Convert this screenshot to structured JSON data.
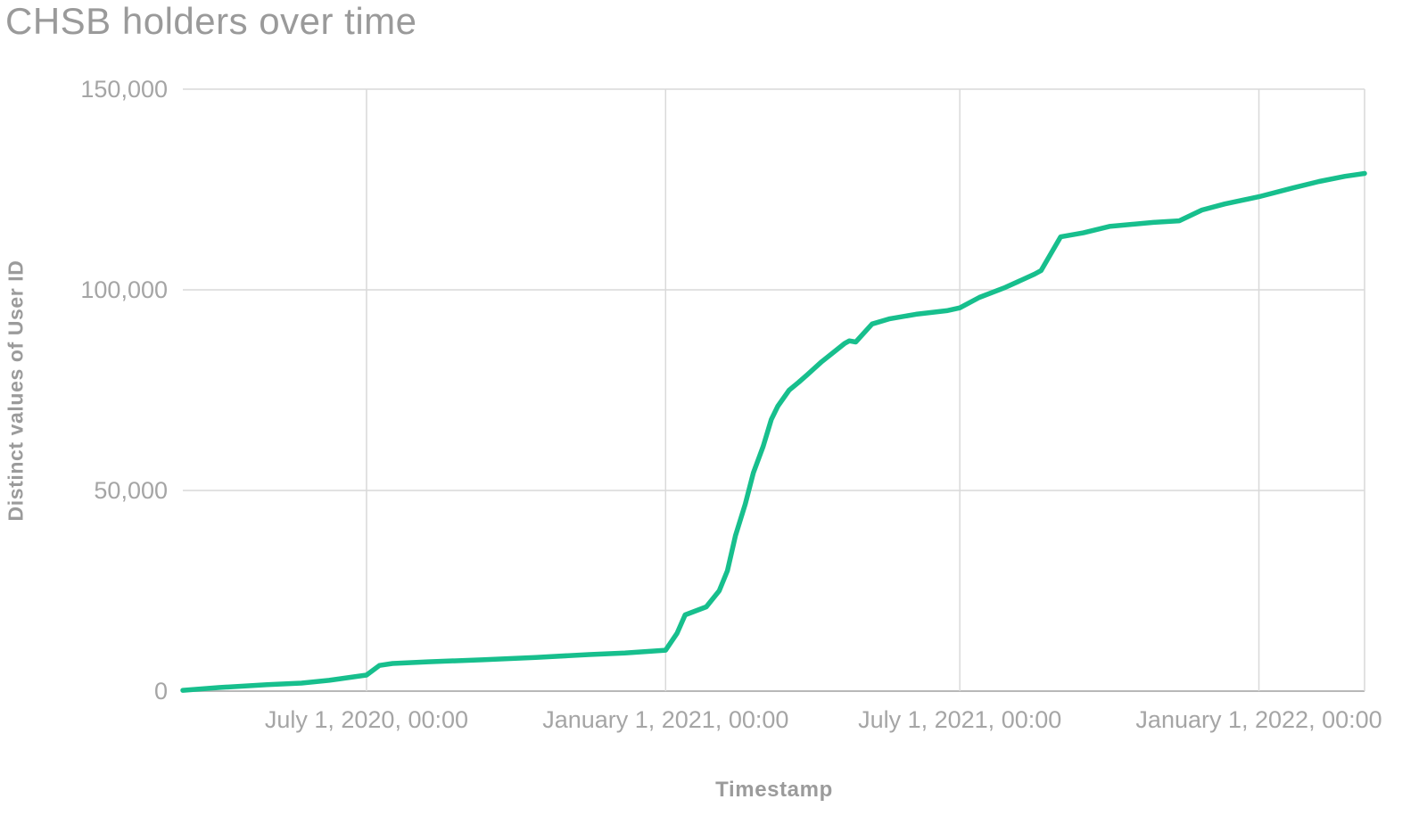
{
  "chart_data": {
    "type": "line",
    "title": "CHSB holders over time",
    "xlabel": "Timestamp",
    "ylabel": "Distinct values of User ID",
    "ylim": [
      0,
      150000
    ],
    "grid": true,
    "legend": "none",
    "colors": {
      "line": "#17bf8d",
      "grid": "#d9d9d9",
      "axis": "#b8b8b8",
      "text": "#9b9b9b",
      "tick_text": "#a5a5a5"
    },
    "x_domain": [
      "2020-03-10",
      "2022-03-07"
    ],
    "y_ticks": [
      {
        "value": 0,
        "label": "0"
      },
      {
        "value": 50000,
        "label": "50,000"
      },
      {
        "value": 100000,
        "label": "100,000"
      },
      {
        "value": 150000,
        "label": "150,000"
      }
    ],
    "x_ticks": [
      {
        "date": "2020-07-01",
        "label": "July 1, 2020, 00:00"
      },
      {
        "date": "2021-01-01",
        "label": "January 1, 2021, 00:00"
      },
      {
        "date": "2021-07-01",
        "label": "July 1, 2021, 00:00"
      },
      {
        "date": "2022-01-01",
        "label": "January 1, 2022, 00:00"
      }
    ],
    "series": [
      {
        "name": "Distinct values of User ID",
        "points": [
          [
            "2020-03-10",
            200
          ],
          [
            "2020-04-01",
            900
          ],
          [
            "2020-05-01",
            1600
          ],
          [
            "2020-05-22",
            2000
          ],
          [
            "2020-06-08",
            2700
          ],
          [
            "2020-07-01",
            4000
          ],
          [
            "2020-07-09",
            6400
          ],
          [
            "2020-07-17",
            6900
          ],
          [
            "2020-08-08",
            7300
          ],
          [
            "2020-09-10",
            7800
          ],
          [
            "2020-10-13",
            8400
          ],
          [
            "2020-11-15",
            9100
          ],
          [
            "2020-12-07",
            9500
          ],
          [
            "2021-01-01",
            10200
          ],
          [
            "2021-01-08",
            14400
          ],
          [
            "2021-01-13",
            19000
          ],
          [
            "2021-01-26",
            21000
          ],
          [
            "2021-02-03",
            25000
          ],
          [
            "2021-02-08",
            30000
          ],
          [
            "2021-02-13",
            38800
          ],
          [
            "2021-02-19",
            46600
          ],
          [
            "2021-02-24",
            54400
          ],
          [
            "2021-03-02",
            61000
          ],
          [
            "2021-03-07",
            67700
          ],
          [
            "2021-03-11",
            71000
          ],
          [
            "2021-03-18",
            75000
          ],
          [
            "2021-03-24",
            77000
          ],
          [
            "2021-03-29",
            78800
          ],
          [
            "2021-04-07",
            82100
          ],
          [
            "2021-04-21",
            86600
          ],
          [
            "2021-04-24",
            87300
          ],
          [
            "2021-04-28",
            87000
          ],
          [
            "2021-05-08",
            91500
          ],
          [
            "2021-05-19",
            92800
          ],
          [
            "2021-06-04",
            93900
          ],
          [
            "2021-06-23",
            94800
          ],
          [
            "2021-07-01",
            95500
          ],
          [
            "2021-07-13",
            98100
          ],
          [
            "2021-07-29",
            100600
          ],
          [
            "2021-08-16",
            103900
          ],
          [
            "2021-08-20",
            104800
          ],
          [
            "2021-09-01",
            113200
          ],
          [
            "2021-09-15",
            114200
          ],
          [
            "2021-10-01",
            115800
          ],
          [
            "2021-10-28",
            116800
          ],
          [
            "2021-11-13",
            117200
          ],
          [
            "2021-11-27",
            119900
          ],
          [
            "2021-12-11",
            121400
          ],
          [
            "2022-01-01",
            123200
          ],
          [
            "2022-01-22",
            125400
          ],
          [
            "2022-02-07",
            127000
          ],
          [
            "2022-02-23",
            128300
          ],
          [
            "2022-03-07",
            129000
          ]
        ]
      }
    ]
  }
}
